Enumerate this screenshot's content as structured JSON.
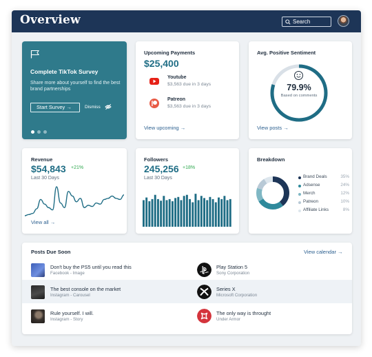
{
  "header": {
    "title": "Overview",
    "search_label": "Search"
  },
  "promo": {
    "title": "Complete TikTok Survey",
    "description": "Share more about yourself to find the best brand partnerships",
    "start_button": "Start Survey →",
    "dismiss": "Dismiss",
    "pages": 3,
    "active_page": 1
  },
  "payments": {
    "title": "Upcoming Payments",
    "total": "$25,400",
    "items": [
      {
        "name": "Youtube",
        "note": "$3,563 due in 3 days",
        "icon": "youtube-icon"
      },
      {
        "name": "Patreon",
        "note": "$3,563 due in 3 days",
        "icon": "patreon-icon"
      }
    ],
    "link": "View upcoming →"
  },
  "sentiment": {
    "title": "Avg. Positive Sentiment",
    "value": "79.9%",
    "value_fraction": 0.799,
    "subtitle": "Based on comments",
    "link": "View posts →",
    "icon": "smile-icon"
  },
  "revenue": {
    "title": "Revenue",
    "value": "$54,843",
    "delta": "+21%",
    "period": "Last 30 Days",
    "link": "View all →",
    "chart_data": {
      "type": "line",
      "values": [
        10,
        12,
        14,
        22,
        38,
        30,
        24,
        20,
        60,
        32,
        24,
        52,
        44,
        34,
        40,
        24,
        28,
        26,
        32,
        30,
        38,
        40,
        44,
        40,
        38,
        46
      ]
    }
  },
  "followers": {
    "title": "Followers",
    "value": "245,256",
    "delta": "+18%",
    "period": "Last 30 Days",
    "chart_data": {
      "type": "bar",
      "values": [
        50,
        55,
        48,
        52,
        60,
        52,
        49,
        58,
        50,
        52,
        48,
        54,
        56,
        50,
        58,
        60,
        52,
        46,
        62,
        50,
        58,
        54,
        50,
        56,
        52,
        46,
        55,
        52,
        58,
        50,
        52
      ]
    }
  },
  "breakdown": {
    "title": "Breakdown",
    "chart_data": {
      "type": "pie",
      "categories": [
        "Brand Deals",
        "Adsense",
        "Merch",
        "Patreon",
        "Affiliate Links"
      ],
      "values": [
        35,
        24,
        12,
        10,
        8
      ],
      "labels": [
        "35%",
        "24%",
        "12%",
        "10%",
        "8%"
      ],
      "colors": [
        "#1d3557",
        "#2f8a9c",
        "#7fb7c4",
        "#b8c9d6",
        "#dde6ed"
      ]
    }
  },
  "posts": {
    "title": "Posts Due Soon",
    "link": "View calendar →",
    "left": [
      {
        "text": "Don't buy the PS5 until you read this",
        "sub": "Facebook - Image",
        "thumb": "ps5-controller-thumb"
      },
      {
        "text": "The best console on the market",
        "sub": "Instagram - Carousel",
        "thumb": "console-thumb"
      },
      {
        "text": "Rule yourself. I will.",
        "sub": "Instagram - Story",
        "thumb": "portrait-thumb"
      }
    ],
    "right": [
      {
        "text": "Play Station 5",
        "sub": "Sony Corporation",
        "icon": "playstation-icon"
      },
      {
        "text": "Series X",
        "sub": "Microsoft Corporation",
        "icon": "xbox-icon"
      },
      {
        "text": "The only way is throught",
        "sub": "Under Armor",
        "icon": "under-armour-icon"
      }
    ]
  }
}
